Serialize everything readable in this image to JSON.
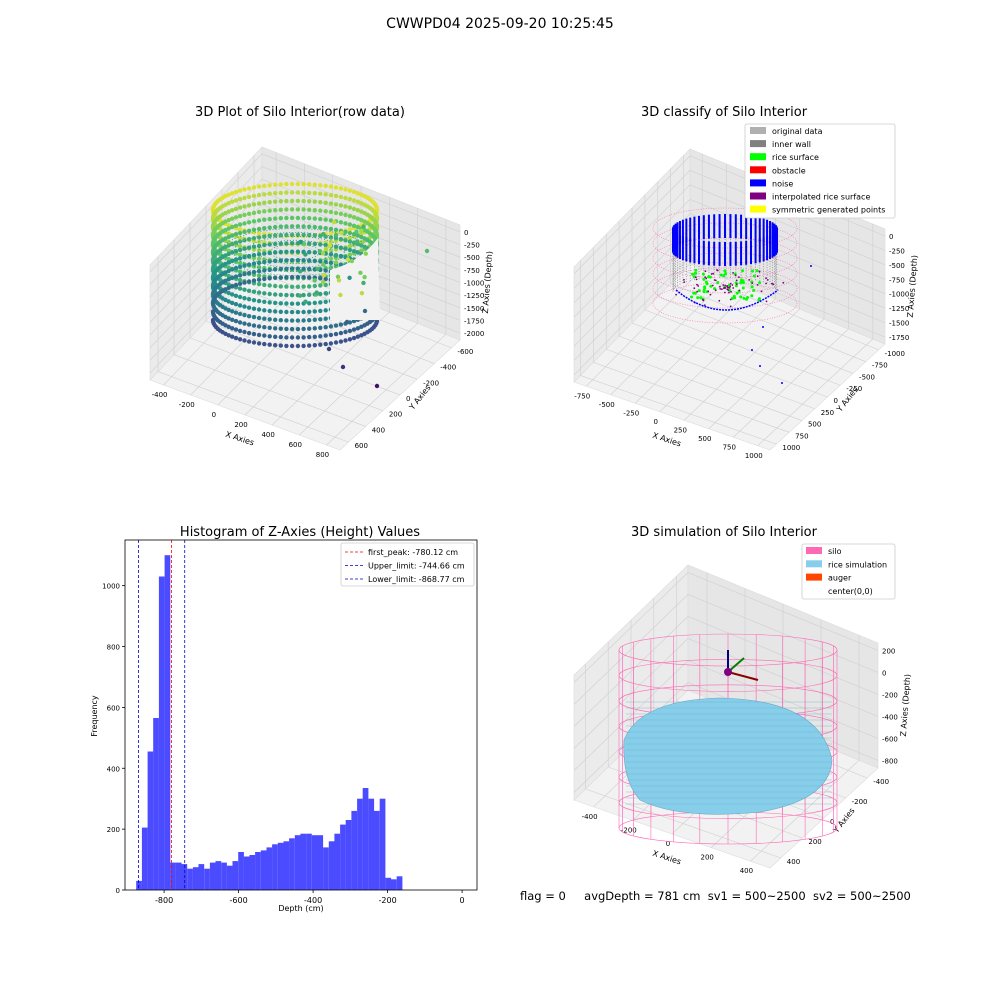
{
  "suptitle": "CWWPD04 2025-09-20 10:25:45",
  "footer": {
    "flag": "flag = 0",
    "avgDepth": "avgDepth = 781 cm",
    "sv1": "sv1 = 500~2500",
    "sv2": "sv2 = 500~2500"
  },
  "chart_data": [
    {
      "id": "raw",
      "type": "scatter",
      "title": "3D Plot of Silo Interior(row data)",
      "xlabel": "X Axies",
      "ylabel": "Y Axies",
      "zlabel": "Z Axies (Depth)",
      "xticks": [
        "-400",
        "-200",
        "0",
        "200",
        "400",
        "600",
        "800"
      ],
      "yticks": [
        "-600",
        "-400",
        "-200",
        "0",
        "200",
        "400",
        "600"
      ],
      "zticks": [
        "0",
        "-250",
        "-500",
        "-750",
        "-1000",
        "-1250",
        "-1500",
        "-1750",
        "-2000"
      ],
      "colormap": [
        "#440154",
        "#3b528b",
        "#21918c",
        "#5ec962",
        "#fde725"
      ]
    },
    {
      "id": "classify",
      "type": "scatter",
      "title": "3D classify of Silo Interior",
      "xlabel": "X Axies",
      "ylabel": "Y Axies",
      "zlabel": "Z Axies (Depth)",
      "xticks": [
        "-750",
        "-500",
        "-250",
        "0",
        "250",
        "500",
        "750",
        "1000"
      ],
      "yticks": [
        "-1000",
        "-750",
        "-500",
        "-250",
        "0",
        "250",
        "500",
        "750",
        "1000"
      ],
      "zticks": [
        "0",
        "-250",
        "-500",
        "-750",
        "-1000",
        "-1250",
        "-1500",
        "-1750"
      ],
      "legend_position": "top-right",
      "legend": [
        {
          "label": "original data",
          "color": "#b0b0b0"
        },
        {
          "label": "inner wall",
          "color": "#808080"
        },
        {
          "label": "rice surface",
          "color": "#00ff00"
        },
        {
          "label": "obstacle",
          "color": "#ff0000"
        },
        {
          "label": "noise",
          "color": "#0000ff"
        },
        {
          "label": "interpolated rice surface",
          "color": "#800080"
        },
        {
          "label": "symmetric generated points",
          "color": "#ffff00"
        }
      ]
    },
    {
      "id": "hist",
      "type": "bar",
      "title": "Histogram of Z-Axies (Height) Values",
      "xlabel": "Depth (cm)",
      "ylabel": "Frequency",
      "xlim": [
        -905,
        40
      ],
      "ylim": [
        0,
        1150
      ],
      "xticks": [
        -800,
        -600,
        -400,
        -200,
        0
      ],
      "yticks": [
        0,
        200,
        400,
        600,
        800,
        1000
      ],
      "bar_color": "#4b4bff",
      "bin_width": 15.2,
      "bins_start": -890,
      "values": [
        0,
        30,
        205,
        455,
        565,
        1030,
        1100,
        90,
        90,
        85,
        70,
        75,
        85,
        70,
        90,
        95,
        90,
        80,
        95,
        125,
        110,
        115,
        125,
        130,
        140,
        150,
        155,
        160,
        170,
        180,
        185,
        185,
        180,
        180,
        140,
        160,
        185,
        215,
        230,
        260,
        300,
        335,
        300,
        260,
        300,
        40,
        35,
        45
      ],
      "lines": [
        {
          "label": "first_peak: -780.12 cm",
          "x": -780.12,
          "color": "#ff0000"
        },
        {
          "label": "Upper_limit: -744.66 cm",
          "x": -744.66,
          "color": "#0000cc"
        },
        {
          "label": "Lower_limit: -868.77 cm",
          "x": -868.77,
          "color": "#0000cc"
        }
      ],
      "legend_position": "top-right"
    },
    {
      "id": "sim",
      "type": "surface",
      "title": "3D simulation of Silo Interior",
      "xlabel": "X Axies",
      "ylabel": "Y Axies",
      "zlabel": "Z Axies (Depth)",
      "xticks": [
        "-400",
        "-200",
        "0",
        "200",
        "400"
      ],
      "yticks": [
        "-400",
        "-200",
        "0",
        "200",
        "400"
      ],
      "zticks": [
        "200",
        "0",
        "-200",
        "-400",
        "-600",
        "-800"
      ],
      "legend_position": "top-right",
      "legend": [
        {
          "label": "silo",
          "color": "#ff69b4"
        },
        {
          "label": "rice simulation",
          "color": "#87ceeb"
        },
        {
          "label": "auger",
          "color": "#ff4500"
        },
        {
          "label": "center(0,0)",
          "color": "#ffffff"
        }
      ]
    }
  ]
}
